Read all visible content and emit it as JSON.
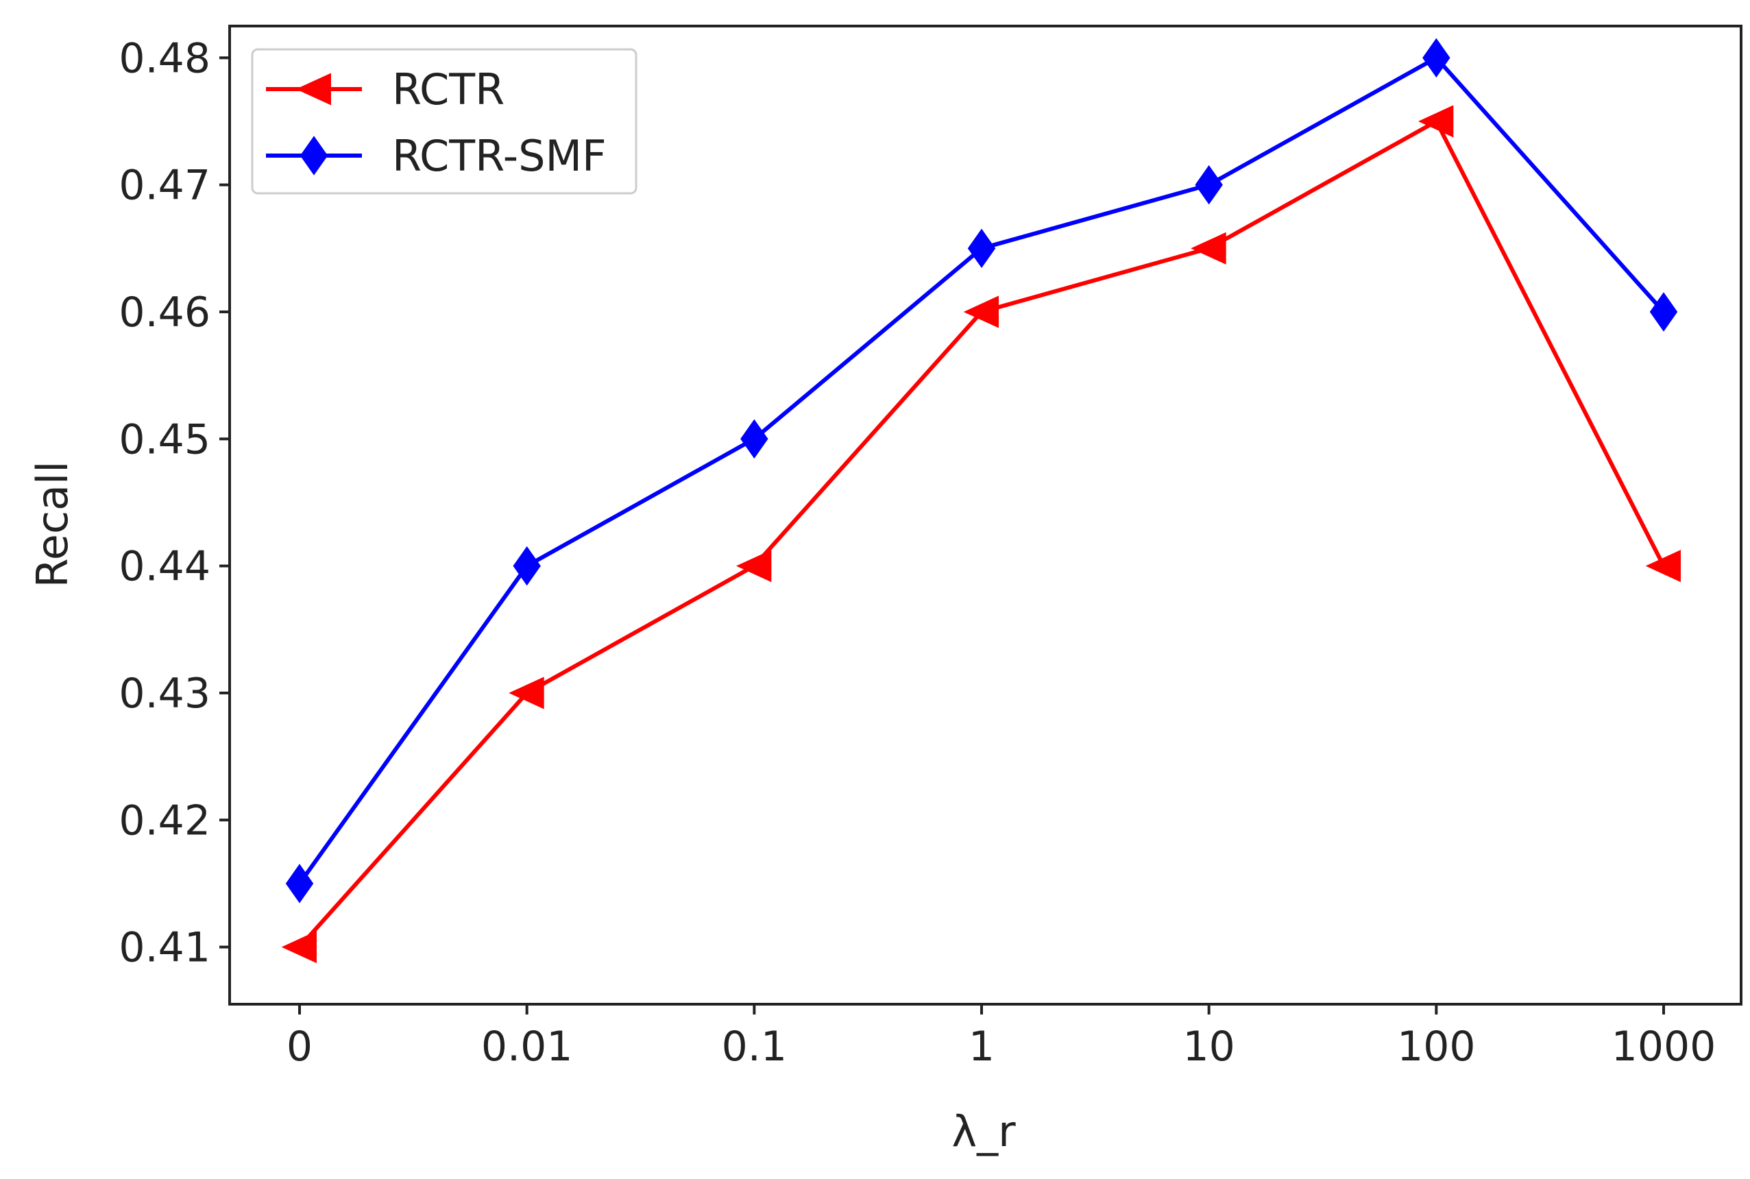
{
  "chart_data": {
    "type": "line",
    "title": "",
    "xlabel": "λ_r",
    "ylabel": "Recall",
    "categories": [
      "0",
      "0.01",
      "0.1",
      "1",
      "10",
      "100",
      "1000"
    ],
    "ylim": [
      0.4055,
      0.4825
    ],
    "yticks": [
      0.41,
      0.42,
      0.43,
      0.44,
      0.45,
      0.46,
      0.47,
      0.48
    ],
    "ytick_labels": [
      "0.41",
      "0.42",
      "0.43",
      "0.44",
      "0.45",
      "0.46",
      "0.47",
      "0.48"
    ],
    "grid": false,
    "legend_position": "top-left",
    "series": [
      {
        "name": "RCTR",
        "color": "#ff0000",
        "marker": "triangle-left",
        "values": [
          0.41,
          0.43,
          0.44,
          0.46,
          0.465,
          0.475,
          0.44
        ]
      },
      {
        "name": "RCTR-SMF",
        "color": "#0000ff",
        "marker": "diamond",
        "values": [
          0.415,
          0.44,
          0.45,
          0.465,
          0.47,
          0.48,
          0.46
        ]
      }
    ]
  }
}
